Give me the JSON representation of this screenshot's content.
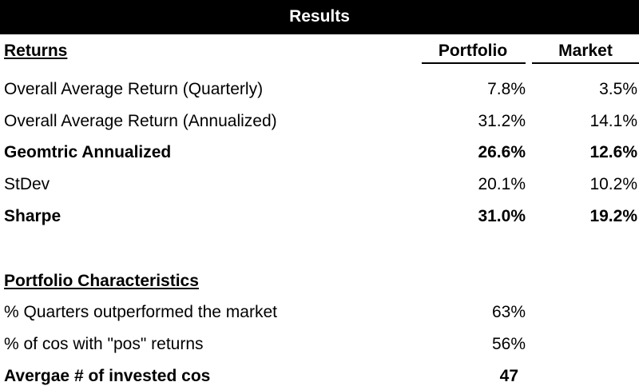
{
  "colors": {
    "header_bg": "#000000",
    "header_text": "#ffffff",
    "accent_line": "#1e5a32"
  },
  "title": "Results",
  "returns": {
    "heading": "Returns",
    "col_portfolio": "Portfolio",
    "col_market": "Market",
    "rows": [
      {
        "label": "Overall Average Return (Quarterly)",
        "portfolio": "7.8%",
        "market": "3.5%"
      },
      {
        "label": "Overall Average Return (Annualized)",
        "portfolio": "31.2%",
        "market": "14.1%"
      },
      {
        "label": "Geomtric Annualized",
        "portfolio": "26.6%",
        "market": "12.6%"
      },
      {
        "label": "StDev",
        "portfolio": "20.1%",
        "market": "10.2%"
      },
      {
        "label": "Sharpe",
        "portfolio": "31.0%",
        "market": "19.2%"
      }
    ]
  },
  "characteristics": {
    "heading": "Portfolio Characteristics",
    "rows": [
      {
        "label": "% Quarters outperformed the market",
        "value": "63%"
      },
      {
        "label": "% of cos with \"pos\" returns",
        "value": "56%"
      },
      {
        "label": "Avergae # of invested cos",
        "value": "47"
      }
    ]
  }
}
